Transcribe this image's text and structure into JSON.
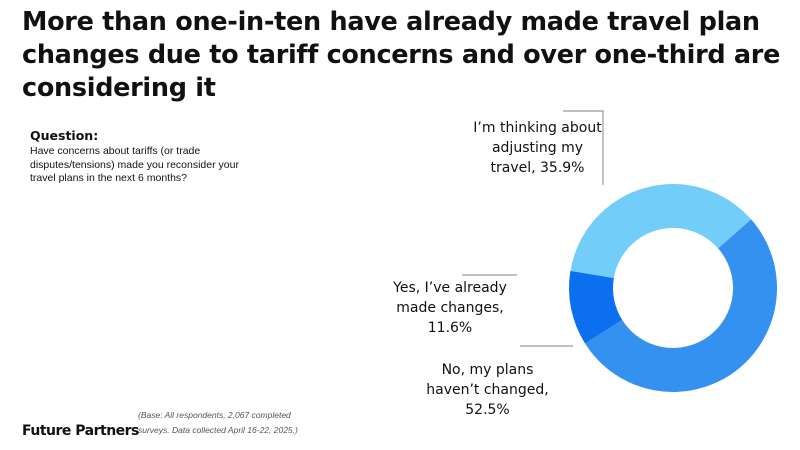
{
  "title": "More than one-in-ten have already made travel plan changes due to tariff concerns and over one-third are considering it",
  "question_heading": "Question:",
  "question_text": "Have concerns about tariffs (or trade disputes/tensions) made you reconsider your travel plans in the next 6 months?",
  "base_note": "(Base: All respondents, 2,067 completed surveys. Data collected April 16-22, 2025.)",
  "brand": "Future Partners",
  "chart_data": {
    "type": "pie",
    "donut": true,
    "slices": [
      {
        "label": "I’m thinking about adjusting my travel, 35.9%",
        "value": 35.9,
        "color": "#72cdf9"
      },
      {
        "label": "No, my plans haven’t changed, 52.5%",
        "value": 52.5,
        "color": "#3591f0"
      },
      {
        "label": "Yes, I’ve already made changes, 11.6%",
        "value": 11.6,
        "color": "#0c6ff0"
      }
    ]
  }
}
